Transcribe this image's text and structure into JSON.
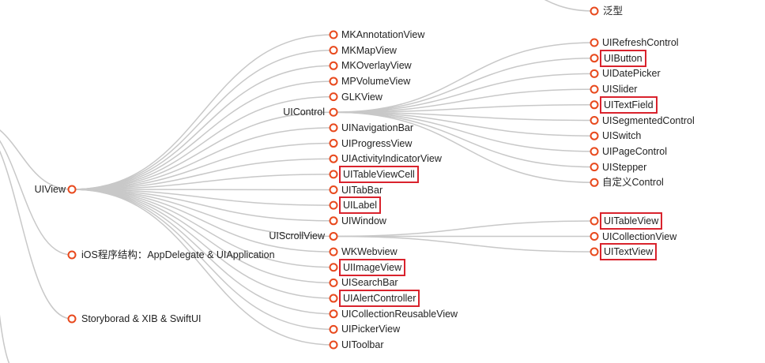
{
  "root": {
    "label": "UIView",
    "children": [
      {
        "label": "MKAnnotationView"
      },
      {
        "label": "MKMapView"
      },
      {
        "label": "MKOverlayView"
      },
      {
        "label": "MPVolumeView"
      },
      {
        "label": "GLKView"
      },
      {
        "label": "UIControl",
        "children": [
          {
            "label": "UIRefreshControl"
          },
          {
            "label": "UIButton",
            "highlighted": true
          },
          {
            "label": "UIDatePicker"
          },
          {
            "label": "UISlider"
          },
          {
            "label": "UITextField",
            "highlighted": true
          },
          {
            "label": "UISegmentedControl"
          },
          {
            "label": "UISwitch"
          },
          {
            "label": "UIPageControl"
          },
          {
            "label": "UIStepper"
          },
          {
            "label": "自定义Control"
          }
        ]
      },
      {
        "label": "UINavigationBar"
      },
      {
        "label": "UIProgressView"
      },
      {
        "label": "UIActivityIndicatorView"
      },
      {
        "label": "UITableViewCell",
        "highlighted": true
      },
      {
        "label": "UITabBar"
      },
      {
        "label": "UILabel",
        "highlighted": true
      },
      {
        "label": "UIWindow"
      },
      {
        "label": "UIScrollView",
        "children": [
          {
            "label": "UITableView",
            "highlighted": true
          },
          {
            "label": "UICollectionView"
          },
          {
            "label": "UITextView",
            "highlighted": true
          }
        ]
      },
      {
        "label": "WKWebview"
      },
      {
        "label": "UIImageView",
        "highlighted": true
      },
      {
        "label": "UISearchBar"
      },
      {
        "label": "UIAlertController",
        "highlighted": true
      },
      {
        "label": "UICollectionReusableView"
      },
      {
        "label": "UIPickerView"
      },
      {
        "label": "UIToolbar"
      }
    ]
  },
  "siblings": [
    {
      "label": "iOS程序结构：AppDelegate & UIApplication"
    },
    {
      "label": "Storyborad & XIB & SwiftUI"
    }
  ],
  "top_partial": [
    {
      "label": "泛型"
    }
  ],
  "colors": {
    "node_stroke": "#e8491d",
    "link": "#c8c8c8",
    "highlight_box": "#d9232d"
  }
}
